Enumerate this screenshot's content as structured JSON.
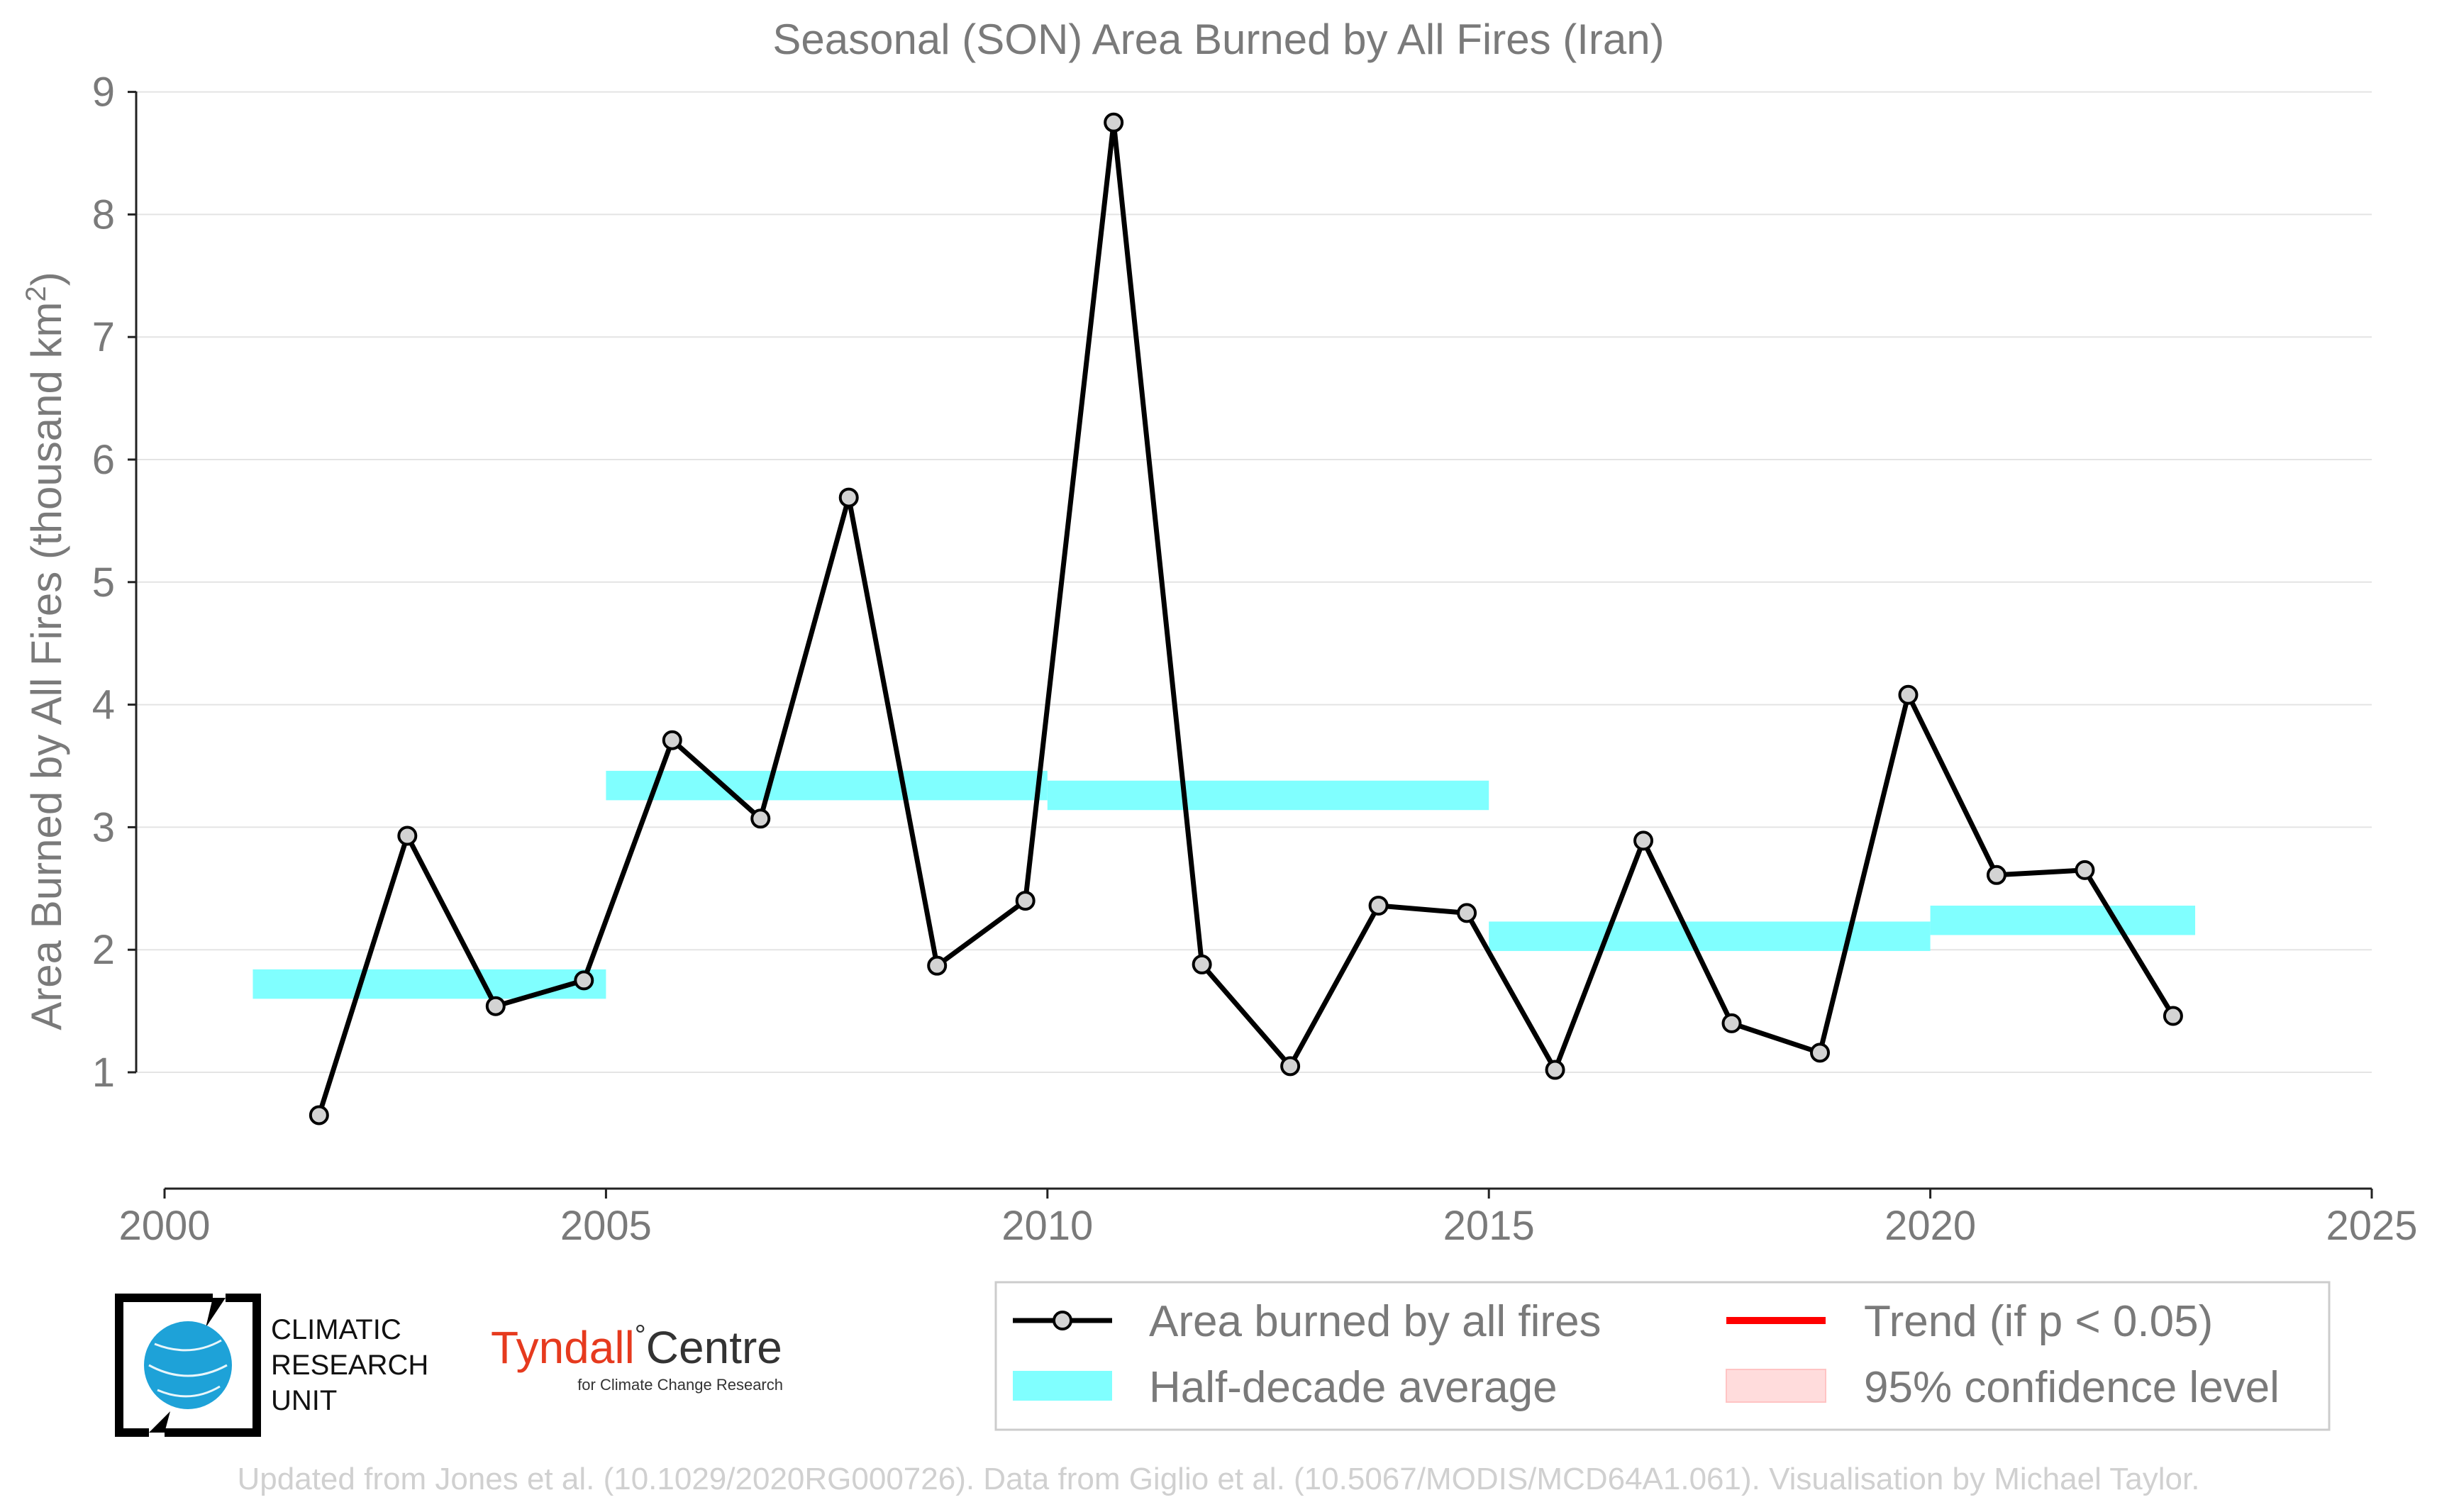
{
  "chart_data": {
    "type": "line",
    "title": "Seasonal (SON) Area Burned by All Fires (Iran)",
    "ylabel": "Area Burned by All Fires (thousand km",
    "ylabel_sup": "2",
    "ylabel_end": ")",
    "xlabel": "",
    "xlim": [
      2000,
      2025
    ],
    "ylim": [
      0,
      9
    ],
    "x_ticks": [
      "2000",
      "2005",
      "2010",
      "2015",
      "2020",
      "2025"
    ],
    "y_ticks": [
      "1",
      "2",
      "3",
      "4",
      "5",
      "6",
      "7",
      "8",
      "9"
    ],
    "grid": "horizontal",
    "series": [
      {
        "name": "Area burned by all fires",
        "color": "#000000",
        "marker_fill": "#d3d3d3",
        "x": [
          2001.75,
          2002.75,
          2003.75,
          2004.75,
          2005.75,
          2006.75,
          2007.75,
          2008.75,
          2009.75,
          2010.75,
          2011.75,
          2012.75,
          2013.75,
          2014.75,
          2015.75,
          2016.75,
          2017.75,
          2018.75,
          2019.75,
          2020.75,
          2021.75,
          2022.75
        ],
        "values": [
          0.65,
          2.93,
          1.54,
          1.75,
          3.71,
          3.07,
          5.69,
          1.87,
          2.4,
          8.75,
          1.88,
          1.05,
          2.36,
          2.3,
          1.02,
          2.89,
          1.4,
          1.16,
          4.08,
          2.61,
          2.65,
          1.46
        ]
      }
    ],
    "half_decade_average": {
      "name": "Half-decade average",
      "color": "#80ffff",
      "segments": [
        {
          "x0": 2001,
          "x1": 2005,
          "value": 1.72
        },
        {
          "x0": 2005,
          "x1": 2010,
          "value": 3.34
        },
        {
          "x0": 2010,
          "x1": 2015,
          "value": 3.26
        },
        {
          "x0": 2015,
          "x1": 2020,
          "value": 2.11
        },
        {
          "x0": 2020,
          "x1": 2023,
          "value": 2.24
        }
      ]
    },
    "legend": {
      "placement": "bottom-right",
      "items": [
        {
          "label": "Area burned by all fires",
          "kind": "line-marker",
          "color": "#000000"
        },
        {
          "label": "Trend (if p < 0.05)",
          "kind": "line",
          "color": "#ff0000"
        },
        {
          "label": "Half-decade average",
          "kind": "band",
          "color": "#80ffff"
        },
        {
          "label": "95% confidence level",
          "kind": "band",
          "color": "#ffdcdc"
        }
      ]
    }
  },
  "logos": {
    "cru_lines": [
      "CLIMATIC",
      "RESEARCH",
      "UNIT"
    ],
    "tyndall_main": "Tyndall",
    "tyndall_degree": "°",
    "tyndall_centre": "Centre",
    "tyndall_sub": "for Climate Change Research"
  },
  "footer": "Updated from Jones et al. (10.1029/2020RG000726). Data from Giglio et al. (10.5067/MODIS/MCD64A1.061). Visualisation by Michael Taylor."
}
